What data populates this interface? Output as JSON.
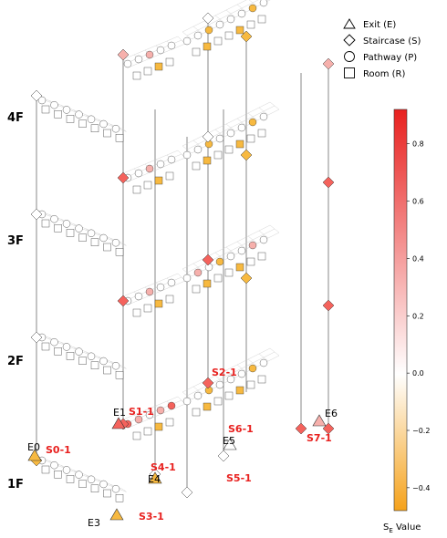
{
  "floors": [
    "1F",
    "2F",
    "3F",
    "4F"
  ],
  "exits": [
    "E0",
    "E1",
    "E3",
    "E4",
    "E5",
    "E6"
  ],
  "staircases": [
    "S0-1",
    "S1-1",
    "S2-1",
    "S3-1",
    "S4-1",
    "S5-1",
    "S6-1",
    "S7-1"
  ],
  "legend": {
    "items": [
      {
        "shape": "triangle",
        "label": "Exit (E)"
      },
      {
        "shape": "diamond",
        "label": "Staircase (S)"
      },
      {
        "shape": "circle",
        "label": "Pathway (P)"
      },
      {
        "shape": "square",
        "label": "Room (R)"
      }
    ]
  },
  "colorbar": {
    "title": "S",
    "subscript": "E",
    "title_suffix": " Value",
    "ticks": [
      "0.8",
      "0.6",
      "0.4",
      "0.2",
      "0.0",
      "−0.2",
      "−0.4"
    ],
    "tick_values": [
      0.8,
      0.6,
      0.4,
      0.2,
      0.0,
      -0.2,
      -0.4
    ],
    "vmin": -0.48,
    "vmax": 0.92,
    "colors": {
      "max": "#e8211f",
      "mid": "#ffffff",
      "min": "#f5a21b"
    }
  }
}
